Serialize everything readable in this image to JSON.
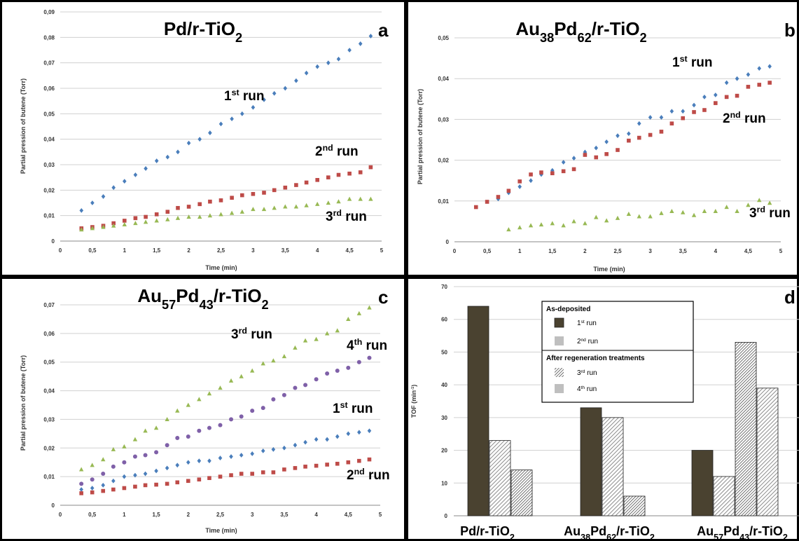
{
  "panels": [
    {
      "letter": "a",
      "title": {
        "main": "Pd/r-TiO",
        "sub": "2"
      },
      "x_ticks": [
        "0",
        "0,5",
        "1",
        "1,5",
        "2",
        "2,5",
        "3",
        "3,5",
        "4",
        "4,5",
        "5"
      ],
      "y_ticks": [
        "0",
        "0,01",
        "0,02",
        "0,03",
        "0,04",
        "0,05",
        "0,06",
        "0,07",
        "0,08",
        "0,09"
      ],
      "xlabel": "Time (min)",
      "ylabel": "Partial pression of butene (Torr)",
      "run_labels": [
        {
          "n": "1",
          "sup": "st",
          "text": " run"
        },
        {
          "n": "2",
          "sup": "nd",
          "text": " run"
        },
        {
          "n": "3",
          "sup": "rd",
          "text": " run"
        }
      ]
    },
    {
      "letter": "b",
      "title": {
        "p1": "Au",
        "s1": "38",
        "p2": "Pd",
        "s2": "62",
        "p3": "/r-TiO",
        "s3": "2"
      },
      "x_ticks": [
        "0",
        "0,5",
        "1",
        "1,5",
        "2",
        "2,5",
        "3",
        "3,5",
        "4",
        "4,5",
        "5"
      ],
      "y_ticks": [
        "0",
        "0,01",
        "0,02",
        "0,03",
        "0,04",
        "0,05"
      ],
      "xlabel": "Time (min)",
      "ylabel": "Partial pression of butene (Torr)",
      "run_labels": [
        {
          "n": "1",
          "sup": "st",
          "text": " run"
        },
        {
          "n": "2",
          "sup": "nd",
          "text": " run"
        },
        {
          "n": "3",
          "sup": "rd",
          "text": " run"
        }
      ]
    },
    {
      "letter": "c",
      "title": {
        "p1": "Au",
        "s1": "57",
        "p2": "Pd",
        "s2": "43",
        "p3": "/r-TiO",
        "s3": "2"
      },
      "x_ticks": [
        "0",
        "0,5",
        "1",
        "1,5",
        "2",
        "2,5",
        "3",
        "3,5",
        "4",
        "4,5",
        "5"
      ],
      "y_ticks": [
        "0",
        "0,01",
        "0,02",
        "0,03",
        "0,04",
        "0,05",
        "0,06",
        "0,07"
      ],
      "xlabel": "Time (min)",
      "ylabel": "Partial pression of butene (Torr)",
      "run_labels": [
        {
          "n": "3",
          "sup": "rd",
          "text": " run"
        },
        {
          "n": "4",
          "sup": "th",
          "text": " run"
        },
        {
          "n": "1",
          "sup": "st",
          "text": " run"
        },
        {
          "n": "2",
          "sup": "nd",
          "text": " run"
        }
      ]
    },
    {
      "letter": "d",
      "y_ticks": [
        "0",
        "10",
        "20",
        "30",
        "40",
        "50",
        "60",
        "70"
      ],
      "ylabel": "TOF (min",
      "ylabel_sup": "-1",
      "ylabel_end": ")",
      "legend": {
        "group1": "As-deposited",
        "group2": "After regeneration treatments",
        "items": [
          {
            "n": "1",
            "sup": "st",
            "text": " run"
          },
          {
            "n": "2",
            "sup": "nd",
            "text": " run"
          },
          {
            "n": "3",
            "sup": "rd",
            "text": " run"
          },
          {
            "n": "4",
            "sup": "th",
            "text": " run"
          }
        ]
      },
      "categories": [
        {
          "p1": "Pd/r-TiO",
          "s1": "2"
        },
        {
          "p1": "Au",
          "s1": "38",
          "p2": "Pd",
          "s2": "62",
          "p3": "/r-TiO",
          "s3": "2"
        },
        {
          "p1": "Au",
          "s1": "57",
          "p2": "Pd",
          "s2": "43",
          "p3": "/r-TiO",
          "s3": "2"
        }
      ]
    }
  ],
  "chart_data": [
    {
      "type": "scatter",
      "title": "Pd/r-TiO2",
      "xlabel": "Time (min)",
      "ylabel": "Partial pression of butene (Torr)",
      "xlim": [
        0,
        5
      ],
      "ylim": [
        0,
        0.09
      ],
      "grid": true,
      "series": [
        {
          "name": "1st run",
          "color": "#4a7ebb",
          "marker": "diamond",
          "x": [
            0.33,
            0.5,
            0.67,
            0.83,
            1,
            1.17,
            1.33,
            1.5,
            1.67,
            1.83,
            2,
            2.17,
            2.33,
            2.5,
            2.67,
            2.83,
            3,
            3.17,
            3.33,
            3.5,
            3.67,
            3.83,
            4,
            4.17,
            4.33,
            4.5,
            4.67,
            4.83
          ],
          "y": [
            0.012,
            0.015,
            0.0175,
            0.021,
            0.0235,
            0.026,
            0.0285,
            0.0315,
            0.033,
            0.035,
            0.0385,
            0.04,
            0.0425,
            0.046,
            0.048,
            0.05,
            0.0525,
            0.0555,
            0.058,
            0.06,
            0.063,
            0.066,
            0.0685,
            0.07,
            0.0715,
            0.075,
            0.0775,
            0.0805
          ]
        },
        {
          "name": "2nd run",
          "color": "#be4b48",
          "marker": "square",
          "x": [
            0.33,
            0.5,
            0.67,
            0.83,
            1,
            1.17,
            1.33,
            1.5,
            1.67,
            1.83,
            2,
            2.17,
            2.33,
            2.5,
            2.67,
            2.83,
            3,
            3.17,
            3.33,
            3.5,
            3.67,
            3.83,
            4,
            4.17,
            4.33,
            4.5,
            4.67,
            4.83
          ],
          "y": [
            0.005,
            0.0055,
            0.006,
            0.007,
            0.008,
            0.009,
            0.0095,
            0.0105,
            0.0115,
            0.013,
            0.0135,
            0.0145,
            0.0155,
            0.016,
            0.017,
            0.018,
            0.0185,
            0.019,
            0.02,
            0.021,
            0.022,
            0.023,
            0.024,
            0.025,
            0.026,
            0.0265,
            0.027,
            0.029
          ]
        },
        {
          "name": "3rd run",
          "color": "#98b954",
          "marker": "triangle",
          "x": [
            0.33,
            0.5,
            0.67,
            0.83,
            1,
            1.17,
            1.33,
            1.5,
            1.67,
            1.83,
            2,
            2.17,
            2.33,
            2.5,
            2.67,
            2.83,
            3,
            3.17,
            3.33,
            3.5,
            3.67,
            3.83,
            4,
            4.17,
            4.33,
            4.5,
            4.67,
            4.83
          ],
          "y": [
            0.0045,
            0.005,
            0.0055,
            0.006,
            0.0065,
            0.007,
            0.0075,
            0.008,
            0.0085,
            0.009,
            0.0095,
            0.0095,
            0.01,
            0.0105,
            0.011,
            0.0115,
            0.0125,
            0.0125,
            0.013,
            0.0135,
            0.0135,
            0.014,
            0.0145,
            0.015,
            0.0155,
            0.0165,
            0.0165,
            0.0165
          ]
        }
      ]
    },
    {
      "type": "scatter",
      "title": "Au38Pd62/r-TiO2",
      "xlabel": "Time (min)",
      "ylabel": "Partial pression of butene (Torr)",
      "xlim": [
        0,
        5
      ],
      "ylim": [
        0,
        0.05
      ],
      "grid": true,
      "series": [
        {
          "name": "1st run",
          "color": "#4a7ebb",
          "marker": "diamond",
          "x": [
            0.67,
            0.83,
            1,
            1.17,
            1.33,
            1.5,
            1.67,
            1.83,
            2,
            2.17,
            2.33,
            2.5,
            2.67,
            2.83,
            3,
            3.17,
            3.33,
            3.5,
            3.67,
            3.83,
            4,
            4.17,
            4.33,
            4.5,
            4.67,
            4.83
          ],
          "y": [
            0.0105,
            0.012,
            0.0135,
            0.015,
            0.0165,
            0.0175,
            0.0195,
            0.0205,
            0.022,
            0.023,
            0.0245,
            0.026,
            0.0265,
            0.029,
            0.0305,
            0.0305,
            0.032,
            0.032,
            0.0335,
            0.0355,
            0.036,
            0.039,
            0.04,
            0.041,
            0.0425,
            0.043
          ]
        },
        {
          "name": "2nd run",
          "color": "#be4b48",
          "marker": "square",
          "x": [
            0.33,
            0.5,
            0.67,
            0.83,
            1,
            1.17,
            1.33,
            1.5,
            1.67,
            1.83,
            2,
            2.17,
            2.33,
            2.5,
            2.67,
            2.83,
            3,
            3.17,
            3.33,
            3.5,
            3.67,
            3.83,
            4,
            4.17,
            4.33,
            4.5,
            4.67,
            4.83
          ],
          "y": [
            0.0085,
            0.0098,
            0.011,
            0.0125,
            0.0148,
            0.0165,
            0.017,
            0.0168,
            0.0173,
            0.0178,
            0.0213,
            0.0207,
            0.0215,
            0.0225,
            0.0248,
            0.0255,
            0.0262,
            0.027,
            0.029,
            0.0303,
            0.0318,
            0.0323,
            0.034,
            0.0355,
            0.0358,
            0.038,
            0.0385,
            0.039
          ]
        },
        {
          "name": "3rd run",
          "color": "#98b954",
          "marker": "triangle",
          "x": [
            0.83,
            1,
            1.17,
            1.33,
            1.5,
            1.67,
            1.83,
            2,
            2.17,
            2.33,
            2.5,
            2.67,
            2.83,
            3,
            3.17,
            3.33,
            3.5,
            3.67,
            3.83,
            4,
            4.17,
            4.33,
            4.5,
            4.67,
            4.83
          ],
          "y": [
            0.003,
            0.0035,
            0.004,
            0.0042,
            0.0045,
            0.004,
            0.005,
            0.0045,
            0.006,
            0.0052,
            0.0058,
            0.0068,
            0.0062,
            0.0062,
            0.007,
            0.0075,
            0.0072,
            0.0065,
            0.0075,
            0.0075,
            0.0085,
            0.0075,
            0.009,
            0.0102,
            0.0095
          ]
        }
      ]
    },
    {
      "type": "scatter",
      "title": "Au57Pd43/r-TiO2",
      "xlabel": "Time (min)",
      "ylabel": "Partial pression of butene (Torr)",
      "xlim": [
        0,
        5
      ],
      "ylim": [
        0,
        0.07
      ],
      "grid": true,
      "series": [
        {
          "name": "1st run",
          "color": "#4a7ebb",
          "marker": "diamond",
          "x": [
            0.33,
            0.5,
            0.67,
            0.83,
            1,
            1.17,
            1.33,
            1.5,
            1.67,
            1.83,
            2,
            2.17,
            2.33,
            2.5,
            2.67,
            2.83,
            3,
            3.17,
            3.33,
            3.5,
            3.67,
            3.83,
            4,
            4.17,
            4.33,
            4.5,
            4.67,
            4.83
          ],
          "y": [
            0.0055,
            0.006,
            0.007,
            0.0085,
            0.01,
            0.0105,
            0.011,
            0.012,
            0.013,
            0.014,
            0.015,
            0.0155,
            0.0155,
            0.0165,
            0.017,
            0.0175,
            0.018,
            0.019,
            0.0195,
            0.02,
            0.021,
            0.022,
            0.023,
            0.023,
            0.024,
            0.025,
            0.0255,
            0.026
          ]
        },
        {
          "name": "2nd run",
          "color": "#be4b48",
          "marker": "square",
          "x": [
            0.33,
            0.5,
            0.67,
            0.83,
            1,
            1.17,
            1.33,
            1.5,
            1.67,
            1.83,
            2,
            2.17,
            2.33,
            2.5,
            2.67,
            2.83,
            3,
            3.17,
            3.33,
            3.5,
            3.67,
            3.83,
            4,
            4.17,
            4.33,
            4.5,
            4.67,
            4.83
          ],
          "y": [
            0.0042,
            0.0045,
            0.005,
            0.0055,
            0.006,
            0.0065,
            0.007,
            0.0072,
            0.0075,
            0.008,
            0.0085,
            0.009,
            0.0095,
            0.01,
            0.0105,
            0.011,
            0.011,
            0.0115,
            0.0115,
            0.0125,
            0.013,
            0.0135,
            0.0138,
            0.0142,
            0.0145,
            0.015,
            0.0155,
            0.016
          ]
        },
        {
          "name": "3rd run",
          "color": "#98b954",
          "marker": "triangle",
          "x": [
            0.33,
            0.5,
            0.67,
            0.83,
            1,
            1.17,
            1.33,
            1.5,
            1.67,
            1.83,
            2,
            2.17,
            2.33,
            2.5,
            2.67,
            2.83,
            3,
            3.17,
            3.33,
            3.5,
            3.67,
            3.83,
            4,
            4.17,
            4.33,
            4.5,
            4.67,
            4.83
          ],
          "y": [
            0.0125,
            0.014,
            0.016,
            0.0195,
            0.0205,
            0.023,
            0.026,
            0.027,
            0.03,
            0.033,
            0.035,
            0.037,
            0.039,
            0.041,
            0.0435,
            0.045,
            0.047,
            0.0495,
            0.0505,
            0.052,
            0.055,
            0.0575,
            0.058,
            0.06,
            0.061,
            0.065,
            0.067,
            0.069
          ]
        },
        {
          "name": "4th run",
          "color": "#7f60a8",
          "marker": "circle",
          "x": [
            0.33,
            0.5,
            0.67,
            0.83,
            1,
            1.17,
            1.33,
            1.5,
            1.67,
            1.83,
            2,
            2.17,
            2.33,
            2.5,
            2.67,
            2.83,
            3,
            3.17,
            3.33,
            3.5,
            3.67,
            3.83,
            4,
            4.17,
            4.33,
            4.5,
            4.67,
            4.83
          ],
          "y": [
            0.0075,
            0.009,
            0.011,
            0.0135,
            0.015,
            0.017,
            0.0175,
            0.0185,
            0.021,
            0.0235,
            0.024,
            0.026,
            0.027,
            0.028,
            0.03,
            0.031,
            0.033,
            0.034,
            0.037,
            0.0385,
            0.041,
            0.042,
            0.044,
            0.046,
            0.047,
            0.048,
            0.05,
            0.0515
          ]
        }
      ]
    },
    {
      "type": "bar",
      "ylabel": "TOF (min-1)",
      "ylim": [
        0,
        70
      ],
      "grid": true,
      "categories": [
        "Pd/r-TiO2",
        "Au38Pd62/r-TiO2",
        "Au57Pd43/r-TiO2"
      ],
      "legend_groups": [
        "As-deposited",
        "After regeneration treatments"
      ],
      "series": [
        {
          "name": "1st run",
          "color": "#4a4230",
          "pattern": "solid",
          "values": [
            64,
            33,
            20
          ]
        },
        {
          "name": "2nd run",
          "color": "#bfbfbf",
          "pattern": "hatch-light",
          "values": [
            23,
            30,
            12
          ]
        },
        {
          "name": "3rd run",
          "color": "#555555",
          "pattern": "hatch-dense",
          "values": [
            14,
            6,
            53
          ]
        },
        {
          "name": "4th run",
          "color": "#bfbfbf",
          "pattern": "hatch-light",
          "values": [
            null,
            null,
            39
          ]
        }
      ]
    }
  ]
}
